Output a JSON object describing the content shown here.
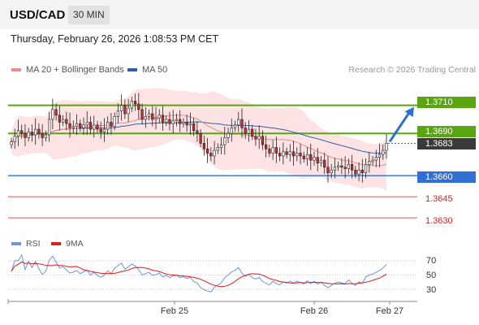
{
  "header": {
    "symbol": "USD/CAD",
    "timeframe": "30 MIN",
    "datetime": "Thursday, February 26, 2026 1:08:53 PM CET"
  },
  "legend": {
    "ma20_label": "MA 20 + Bollinger Bands",
    "ma50_label": "MA 50",
    "credit": "Research © 2026 Trading Central"
  },
  "colors": {
    "ma20": "#ef8a8a",
    "ma50": "#2f5fa8",
    "bb_fill": "#fde3e3",
    "bull": "#ffffff",
    "bear": "#c8282d",
    "level_green": "#5aa512",
    "level_blue": "#2f6fd6",
    "level_red": "#e05555",
    "arrow": "#2f6fd6",
    "rsi": "#6f94e0",
    "rsi_ma": "#e21b1b"
  },
  "levels": {
    "r2": "1.3710",
    "r1": "1.3690",
    "last": "1.3683",
    "s1": "1.3660",
    "s2": "1.3645",
    "s3": "1.3630"
  },
  "rsi": {
    "label": "RSI",
    "ma_label": "9MA",
    "ticks": [
      "70",
      "50",
      "30"
    ]
  },
  "xaxis": {
    "labels": [
      "Feb 25",
      "Feb 26",
      "Feb 27"
    ]
  },
  "chart_data": {
    "type": "candlestick",
    "ylim": [
      1.3622,
      1.373
    ],
    "levels": [
      1.371,
      1.369,
      1.3683,
      1.366,
      1.3645,
      1.363
    ],
    "close": [
      1.3684,
      1.3688,
      1.3692,
      1.369,
      1.3687,
      1.3691,
      1.3689,
      1.3693,
      1.369,
      1.3687,
      1.3689,
      1.37,
      1.3707,
      1.3703,
      1.3698,
      1.37,
      1.3697,
      1.3694,
      1.3695,
      1.3697,
      1.3694,
      1.3696,
      1.3698,
      1.3693,
      1.3696,
      1.3693,
      1.3691,
      1.3693,
      1.3698,
      1.3695,
      1.3702,
      1.3706,
      1.371,
      1.3704,
      1.3708,
      1.3713,
      1.3711,
      1.3707,
      1.37,
      1.3702,
      1.3704,
      1.37,
      1.3701,
      1.3703,
      1.3698,
      1.37,
      1.3697,
      1.3699,
      1.37,
      1.3697,
      1.3698,
      1.3696,
      1.3697,
      1.3692,
      1.369,
      1.3683,
      1.3679,
      1.3676,
      1.3674,
      1.3678,
      1.368,
      1.3682,
      1.3687,
      1.369,
      1.3694,
      1.3696,
      1.37,
      1.3694,
      1.369,
      1.3693,
      1.3688,
      1.3686,
      1.3688,
      1.3682,
      1.3679,
      1.3676,
      1.368,
      1.3676,
      1.3674,
      1.3677,
      1.3675,
      1.3677,
      1.3674,
      1.3676,
      1.3674,
      1.3672,
      1.3675,
      1.3671,
      1.3673,
      1.3669,
      1.3671,
      1.3666,
      1.3662,
      1.3664,
      1.3666,
      1.3667,
      1.3666,
      1.3665,
      1.3668,
      1.3664,
      1.3661,
      1.3664,
      1.3662,
      1.3668,
      1.367,
      1.3671,
      1.3673,
      1.3675,
      1.3678,
      1.3683
    ],
    "x_labels": [
      "Feb 25",
      "Feb 26",
      "Feb 27"
    ],
    "annotations": [
      "up arrow towards 1.3710"
    ]
  }
}
